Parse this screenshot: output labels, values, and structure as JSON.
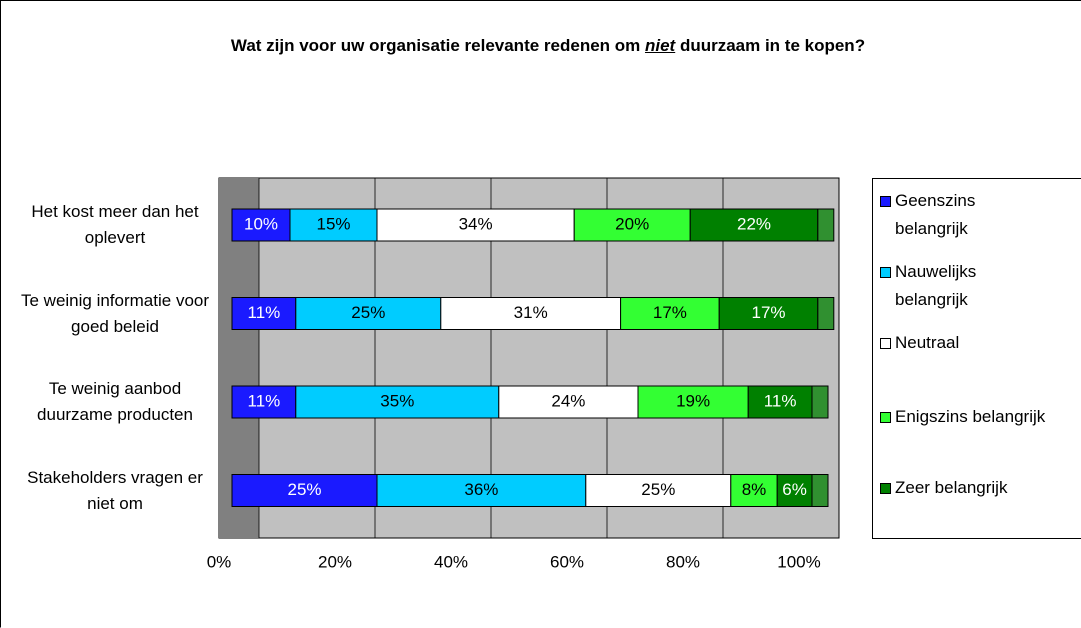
{
  "chart_data": {
    "type": "stacked-bar-horizontal",
    "title": [
      "Wat zijn voor uw organisatie relevante redenen om ",
      "niet",
      " duurzaam in te kopen?"
    ],
    "categories": [
      "Het kost meer dan het oplevert",
      "Te weinig informatie voor goed beleid",
      "Te weinig aanbod duurzame producten",
      "Stakeholders vragen er niet om"
    ],
    "series": [
      {
        "name": "Geenszins belangrijk",
        "color": "#1a1aff",
        "values": [
          10,
          11,
          11,
          25
        ],
        "value_labels": [
          "10%",
          "11%",
          "11%",
          "25%"
        ]
      },
      {
        "name": "Nauwelijks belangrijk",
        "color": "#00ccff",
        "values": [
          15,
          25,
          35,
          36
        ],
        "value_labels": [
          "15%",
          "25%",
          "35%",
          "36%"
        ]
      },
      {
        "name": "Neutraal",
        "color": "#ffffff",
        "values": [
          34,
          31,
          24,
          25
        ],
        "value_labels": [
          "34%",
          "31%",
          "24%",
          "25%"
        ]
      },
      {
        "name": "Enigszins belangrijk",
        "color": "#33ff33",
        "values": [
          20,
          17,
          19,
          8
        ],
        "value_labels": [
          "20%",
          "17%",
          "19%",
          "8%"
        ]
      },
      {
        "name": "Zeer belangrijk",
        "color": "#008000",
        "values": [
          22,
          17,
          11,
          6
        ],
        "value_labels": [
          "22%",
          "17%",
          "11%",
          "6%"
        ]
      }
    ],
    "xlim": [
      0,
      100
    ],
    "xticks": [
      {
        "value": 0,
        "label": "0%"
      },
      {
        "value": 20,
        "label": "20%"
      },
      {
        "value": 40,
        "label": "40%"
      },
      {
        "value": 60,
        "label": "60%"
      },
      {
        "value": 80,
        "label": "80%"
      },
      {
        "value": 100,
        "label": "100%"
      }
    ],
    "grid": true,
    "legend": "right"
  }
}
